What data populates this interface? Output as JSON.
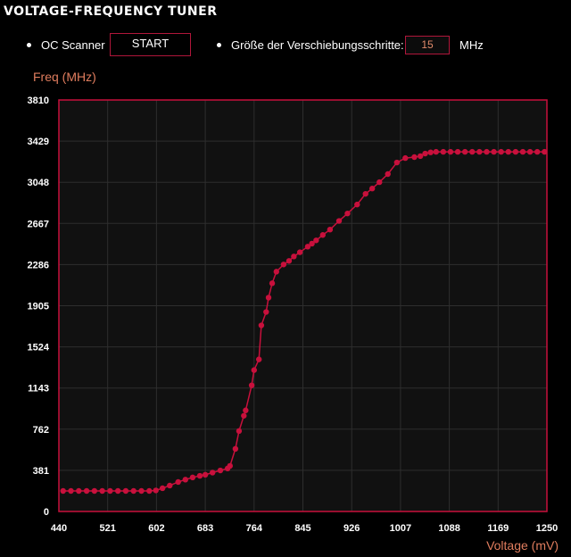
{
  "title": "VOLTAGE-FREQUENCY TUNER",
  "controls": {
    "oc_scanner_label": "OC Scanner",
    "start_button": "START",
    "step_label": "Größe der Verschiebungsschritte:",
    "step_value": "15",
    "step_unit": "MHz"
  },
  "colors": {
    "accent": "#c8103c",
    "axis_title": "#e07d5e",
    "plot_bg": "#111111",
    "grid": "#2e2e2e"
  },
  "chart_data": {
    "type": "line",
    "ylabel": "Freq (MHz)",
    "xlabel": "Voltage (mV)",
    "xlim": [
      440,
      1250
    ],
    "ylim": [
      0,
      3810
    ],
    "xticks": [
      "440",
      "521",
      "602",
      "683",
      "764",
      "845",
      "926",
      "1007",
      "1088",
      "1169",
      "1250"
    ],
    "yticks": [
      "0",
      "381",
      "762",
      "1143",
      "1524",
      "1905",
      "2286",
      "2667",
      "3048",
      "3429",
      "3810"
    ],
    "grid": true,
    "markers": true,
    "x": [
      447,
      460,
      473,
      486,
      499,
      512,
      525,
      538,
      551,
      564,
      577,
      590,
      601,
      612,
      624,
      638,
      650,
      662,
      674,
      683,
      695,
      708,
      720,
      724,
      733,
      739,
      747,
      750,
      760,
      764,
      772,
      776,
      784,
      788,
      794,
      801,
      813,
      822,
      830,
      840,
      853,
      860,
      867,
      878,
      890,
      905,
      919,
      935,
      949,
      960,
      972,
      986,
      1001,
      1015,
      1030,
      1040,
      1048,
      1057,
      1066,
      1078,
      1090,
      1102,
      1114,
      1126,
      1138,
      1150,
      1162,
      1174,
      1186,
      1198,
      1210,
      1222,
      1234,
      1246
    ],
    "y": [
      190,
      190,
      190,
      190,
      190,
      190,
      190,
      190,
      190,
      190,
      190,
      190,
      195,
      215,
      240,
      273,
      295,
      315,
      330,
      340,
      360,
      380,
      398,
      422,
      580,
      745,
      886,
      936,
      1168,
      1309,
      1408,
      1723,
      1847,
      1980,
      2113,
      2220,
      2287,
      2320,
      2361,
      2400,
      2452,
      2480,
      2510,
      2560,
      2610,
      2690,
      2759,
      2842,
      2941,
      2990,
      3049,
      3124,
      3231,
      3272,
      3281,
      3290,
      3314,
      3325,
      3330,
      3330,
      3330,
      3330,
      3330,
      3330,
      3330,
      3330,
      3330,
      3330,
      3330,
      3330,
      3330,
      3330,
      3330,
      3330
    ]
  }
}
